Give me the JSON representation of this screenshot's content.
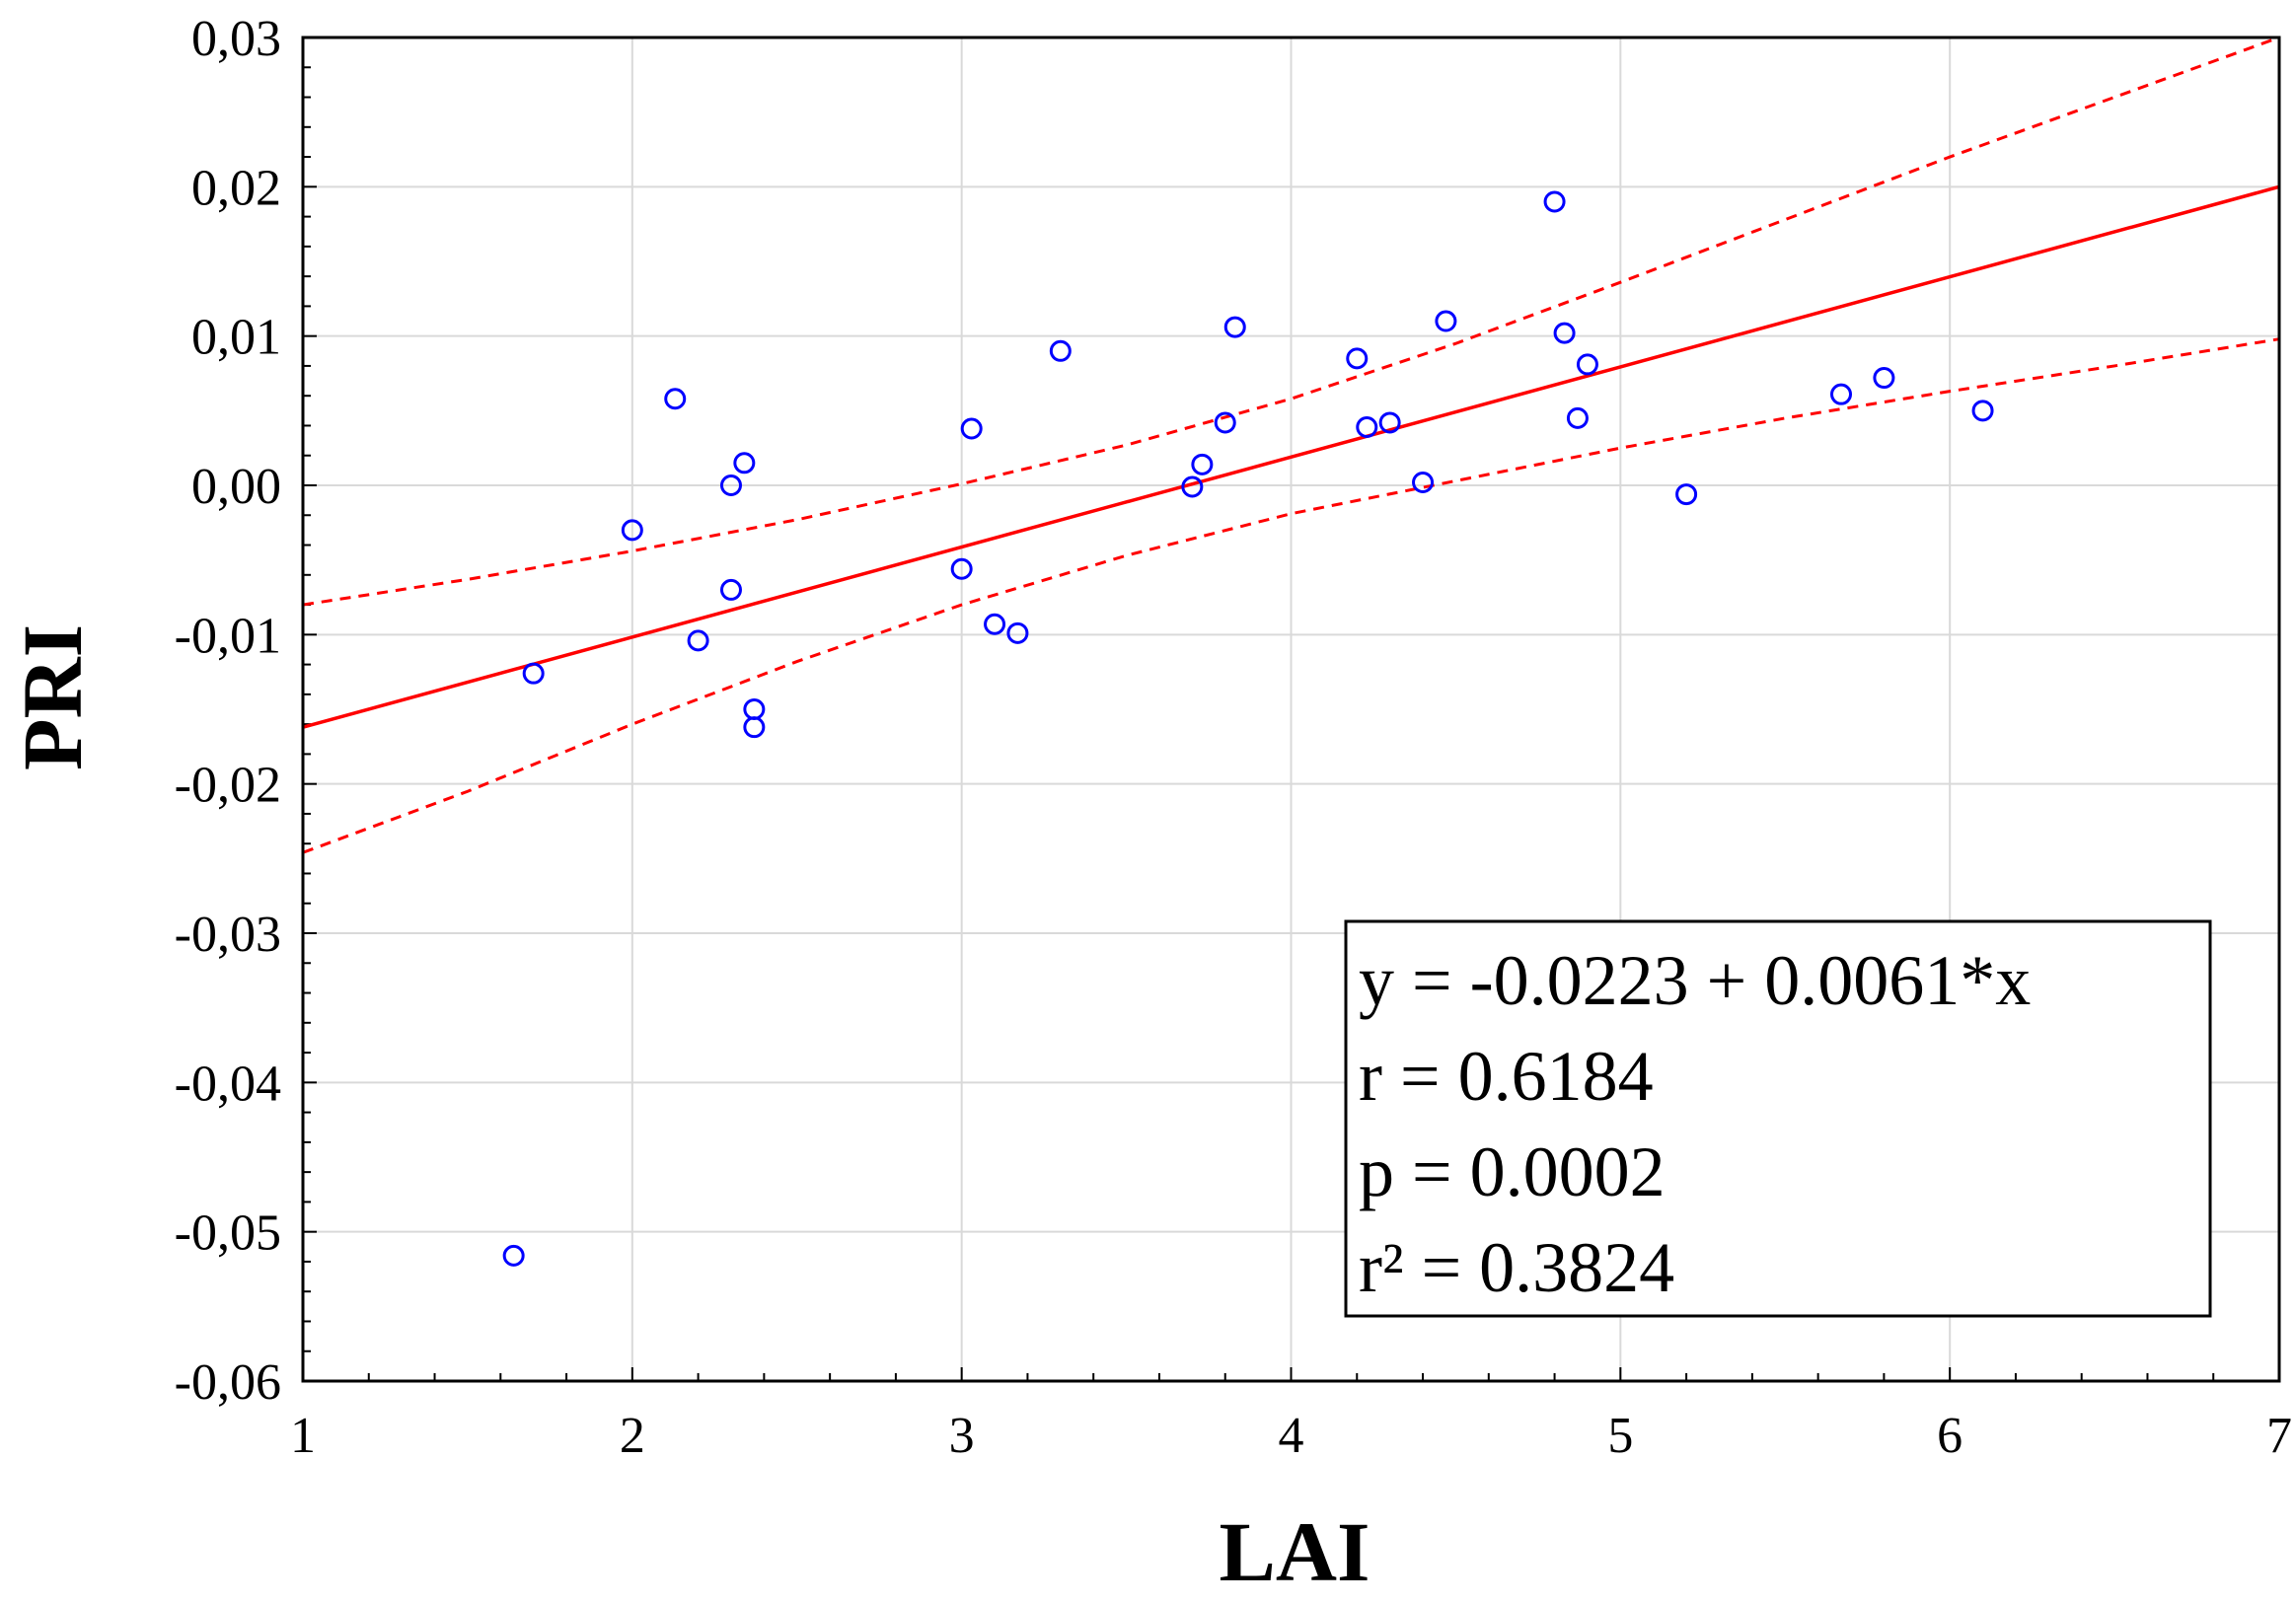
{
  "chart_data": {
    "type": "scatter",
    "title": "",
    "xlabel": "LAI",
    "ylabel": "PRI",
    "xlim": [
      1,
      7
    ],
    "ylim": [
      -0.06,
      0.03
    ],
    "x_ticks": [
      1,
      2,
      3,
      4,
      5,
      6,
      7
    ],
    "x_tick_labels": [
      "1",
      "2",
      "3",
      "4",
      "5",
      "6",
      "7"
    ],
    "y_ticks": [
      0.03,
      0.02,
      0.01,
      0.0,
      -0.01,
      -0.02,
      -0.03,
      -0.04,
      -0.05,
      -0.06
    ],
    "y_tick_labels": [
      "0,03",
      "0,02",
      "0,01",
      "0,00",
      "-0,01",
      "-0,02",
      "-0,03",
      "-0,04",
      "-0,05",
      "-0,06"
    ],
    "grid": true,
    "series": [
      {
        "name": "observations",
        "marker": "open-circle",
        "color": "#0000ff",
        "points": [
          [
            1.64,
            -0.0516
          ],
          [
            1.7,
            -0.0126
          ],
          [
            2.0,
            -0.003
          ],
          [
            2.13,
            0.0058
          ],
          [
            2.2,
            -0.0104
          ],
          [
            2.3,
            -0.007
          ],
          [
            2.3,
            0.0
          ],
          [
            2.34,
            0.0015
          ],
          [
            2.37,
            -0.015
          ],
          [
            2.37,
            -0.0162
          ],
          [
            3.0,
            -0.0056
          ],
          [
            3.03,
            0.0038
          ],
          [
            3.1,
            -0.0093
          ],
          [
            3.17,
            -0.0099
          ],
          [
            3.3,
            0.009
          ],
          [
            3.7,
            -0.0001
          ],
          [
            3.73,
            0.0014
          ],
          [
            3.8,
            0.0042
          ],
          [
            3.83,
            0.0106
          ],
          [
            4.2,
            0.0085
          ],
          [
            4.23,
            0.0039
          ],
          [
            4.3,
            0.0042
          ],
          [
            4.4,
            0.0002
          ],
          [
            4.47,
            0.011
          ],
          [
            4.8,
            0.019
          ],
          [
            4.83,
            0.0102
          ],
          [
            4.87,
            0.0045
          ],
          [
            4.9,
            0.0081
          ],
          [
            5.2,
            -0.0006
          ],
          [
            5.67,
            0.0061
          ],
          [
            5.8,
            0.0072
          ],
          [
            6.1,
            0.005
          ]
        ]
      }
    ],
    "fit_line": {
      "name": "regression",
      "color": "#ff0000",
      "style": "solid",
      "x": [
        1,
        7
      ],
      "y": [
        -0.0162,
        0.02
      ]
    },
    "confidence_bands": [
      {
        "name": "upper-95",
        "color": "#ff0000",
        "style": "dashed",
        "x": [
          1.0,
          1.5,
          2.0,
          2.5,
          3.0,
          3.5,
          4.0,
          4.5,
          5.0,
          5.5,
          6.0,
          6.5,
          7.0
        ],
        "y": [
          -0.008,
          -0.0063,
          -0.0044,
          -0.0023,
          0.0001,
          0.0027,
          0.0058,
          0.0095,
          0.0136,
          0.0178,
          0.022,
          0.026,
          0.03
        ]
      },
      {
        "name": "lower-95",
        "color": "#ff0000",
        "style": "dashed",
        "x": [
          1.0,
          1.5,
          2.0,
          2.5,
          3.0,
          3.5,
          4.0,
          4.5,
          5.0,
          5.5,
          6.0,
          6.5,
          7.0
        ],
        "y": [
          -0.0246,
          -0.0205,
          -0.016,
          -0.0118,
          -0.008,
          -0.0047,
          -0.0019,
          0.0003,
          0.0025,
          0.0045,
          0.0063,
          0.008,
          0.0098
        ]
      }
    ],
    "annotation": {
      "placement": "bottom-right",
      "lines": [
        "y = -0.0223 + 0.0061*x",
        "r = 0.6184",
        "p = 0.0002",
        "r² = 0.3824"
      ]
    }
  }
}
